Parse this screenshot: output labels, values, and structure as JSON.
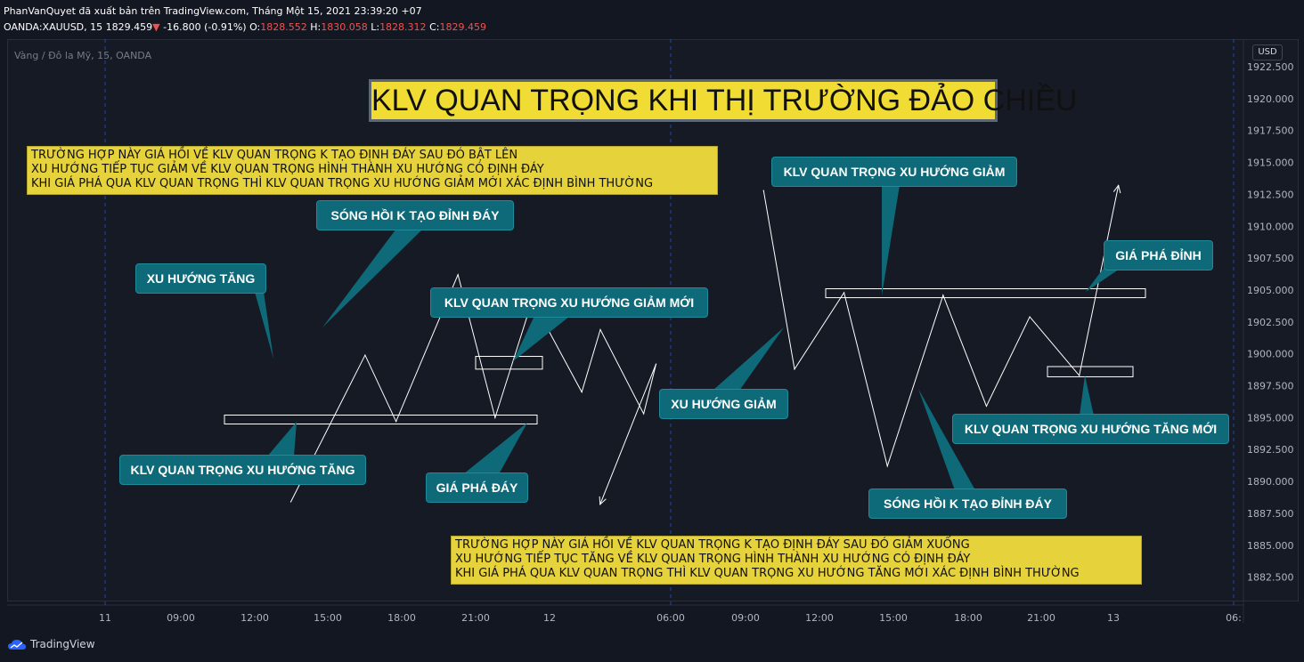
{
  "header": {
    "line1": "PhanVanQuyet đã xuất bản trên TradingView.com, Tháng Một 15, 2021 23:39:20 +07",
    "symbol": "OANDA:XAUUSD, 15",
    "last": "1829.459",
    "arrow": "▼",
    "change": "-16.800 (-0.91%)",
    "o_label": "O:",
    "o": "1828.552",
    "h_label": "H:",
    "h": "1830.058",
    "l_label": "L:",
    "l": "1828.312",
    "c_label": "C:",
    "c": "1829.459"
  },
  "symbol_desc": "Vàng / Đô la Mỹ, 15, OANDA",
  "currency": "USD",
  "title": "KLV QUAN TRỌNG KHI THỊ TRƯỜNG ĐẢO CHIỀU",
  "notes": {
    "top": [
      "TRƯỜNG HỢP NÀY GIÁ HỒI VỀ KLV QUAN TRỌNG K TẠO ĐỊNH ĐÁY SAU ĐÓ BẬT LÊN",
      "XU HƯỚNG TIẾP TỤC GIẢM VỀ KLV QUAN TRỌNG HÌNH THÀNH XU HƯỚNG CÓ ĐỊNH ĐÁY",
      "KHI GIÁ PHÁ QUA KLV QUAN TRỌNG THÌ KLV QUAN TRỌNG XU HƯỚNG GIẢM MỚI XÁC ĐỊNH BÌNH THƯỜNG"
    ],
    "bottom": [
      "TRƯỜNG HỢP NÀY GIÁ HỒI VỀ KLV QUAN TRỌNG K TẠO ĐỊNH ĐÁY SAU ĐÓ GIẢM XUỐNG",
      "XU HƯỚNG TIẾP TỤC TĂNG VỀ KLV QUAN TRỌNG HÌNH THÀNH XU HƯỚNG CÓ ĐỊNH ĐÁY",
      "KHI GIÁ PHÁ QUA KLV QUAN TRỌNG THÌ KLV QUAN TRỌNG XU HƯỚNG TĂNG MỚI XÁC ĐỊNH BÌNH THƯỜNG"
    ]
  },
  "callouts": {
    "song_hoi_1": "SÓNG HỒI K TẠO ĐỈNH ĐÁY",
    "xu_huong_tang": "XU HƯỚNG TĂNG",
    "klv_giam_moi": "KLV QUAN TRỌNG XU HƯỚNG GIẢM MỚI",
    "klv_tang": "KLV QUAN TRỌNG XU HƯỚNG TĂNG",
    "gia_pha_day": "GIÁ PHÁ ĐÁY",
    "klv_giam": "KLV QUAN TRỌNG XU HƯỚNG GIẢM",
    "gia_pha_dinh": "GIÁ PHÁ ĐỈNH",
    "xu_huong_giam": "XU HƯỚNG GIẢM",
    "klv_tang_moi": "KLV QUAN TRỌNG XU HƯỚNG TĂNG MỚI",
    "song_hoi_2": "SÓNG HỒI K TẠO ĐỈNH ĐÁY"
  },
  "footer": {
    "brand": "TradingView"
  },
  "colors": {
    "background": "#131722",
    "callout": "#0e6a79",
    "note": "#e6d23a",
    "title_bg": "#f0dc32",
    "line": "#ffffff",
    "down": "#ef5350",
    "session_line": "#2962ff"
  },
  "chart_data": {
    "type": "line",
    "x_tick_labels": [
      "11",
      "09:00",
      "12:00",
      "15:00",
      "18:00",
      "21:00",
      "12",
      "06:00",
      "09:00",
      "12:00",
      "15:00",
      "18:00",
      "21:00",
      "13",
      "06:"
    ],
    "y_tick_labels": [
      "1922.500",
      "1920.000",
      "1917.500",
      "1915.000",
      "1912.500",
      "1910.000",
      "1907.500",
      "1905.000",
      "1902.500",
      "1900.000",
      "1897.500",
      "1895.000",
      "1892.500",
      "1890.000",
      "1887.500",
      "1885.000",
      "1882.500"
    ],
    "ylim": [
      1881.5,
      1923
    ],
    "session_separators": [
      "11",
      "12",
      "13"
    ],
    "series": [
      {
        "values": [
          {
            "x": "11 07:30",
            "y": 1888.4
          },
          {
            "x": "11 10:30",
            "y": 1899.9
          },
          {
            "x": "11 11:45",
            "y": 1894.7
          },
          {
            "x": "11 14:15",
            "y": 1906.2
          },
          {
            "x": "11 15:45",
            "y": 1895.0
          },
          {
            "x": "11 17:15",
            "y": 1904.2
          },
          {
            "x": "11 19:15",
            "y": 1897.0
          },
          {
            "x": "11 20:00",
            "y": 1901.9
          },
          {
            "x": "11 21:45",
            "y": 1895.3
          },
          {
            "x": "11 22:15",
            "y": 1899.2
          },
          {
            "x": "12 02:30",
            "y": 1888.2
          }
        ]
      },
      {
        "values": [
          {
            "x": "12 09:45",
            "y": 1912.8
          },
          {
            "x": "12 11:00",
            "y": 1898.8
          },
          {
            "x": "12 13:00",
            "y": 1904.8
          },
          {
            "x": "12 14:45",
            "y": 1891.2
          },
          {
            "x": "12 17:00",
            "y": 1904.6
          },
          {
            "x": "12 18:45",
            "y": 1895.9
          },
          {
            "x": "12 20:30",
            "y": 1902.9
          },
          {
            "x": "12 22:30",
            "y": 1898.3
          },
          {
            "x": "13 00:15",
            "y": 1913.2
          }
        ]
      }
    ],
    "zones": [
      {
        "label": "KLV QUAN TRỌNG XU HƯỚNG TĂNG",
        "y_top": 1895.2,
        "y_bottom": 1894.5
      },
      {
        "label": "KLV QUAN TRỌNG XU HƯỚNG GIẢM MỚI",
        "y_top": 1899.8,
        "y_bottom": 1898.8
      },
      {
        "label": "KLV QUAN TRỌNG XU HƯỚNG GIẢM",
        "y_top": 1905.1,
        "y_bottom": 1904.4
      },
      {
        "label": "KLV QUAN TRỌNG XU HƯỚNG TĂNG MỚI",
        "y_top": 1899.0,
        "y_bottom": 1898.2
      }
    ]
  }
}
